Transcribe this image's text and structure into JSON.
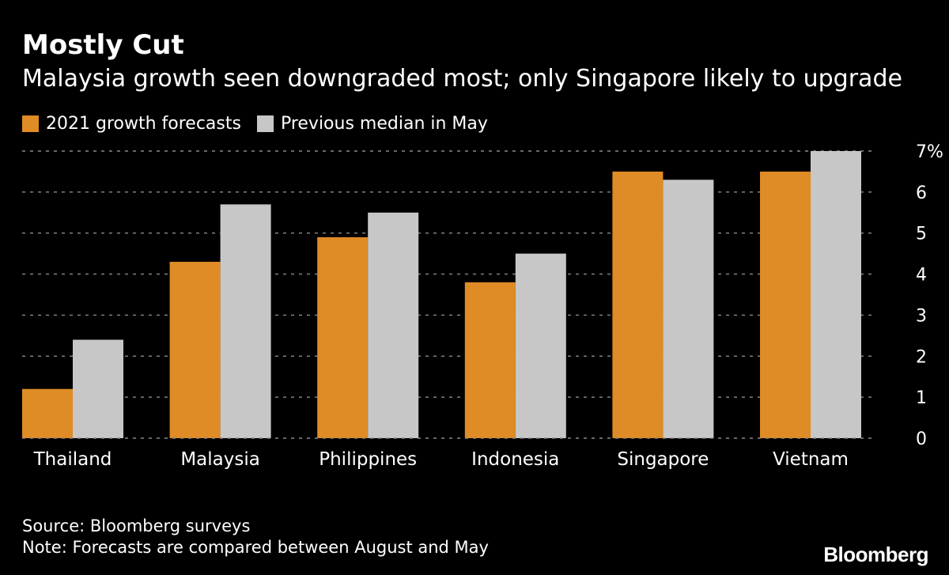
{
  "header": {
    "title": "Mostly Cut",
    "subtitle": "Malaysia growth seen downgraded most; only Singapore likely to upgrade"
  },
  "footer": {
    "source": "Source: Bloomberg surveys",
    "note": "Note: Forecasts are compared between August and May",
    "brand": "Bloomberg"
  },
  "colors": {
    "background": "#000000",
    "series_forecast": "#DF8B26",
    "series_previous": "#C7C7C7",
    "gridline": "#8A8A8A",
    "text": "#FFFFFF"
  },
  "chart_data": {
    "type": "bar",
    "title": "Mostly Cut",
    "subtitle": "Malaysia growth seen downgraded most; only Singapore likely to upgrade",
    "categories": [
      "Thailand",
      "Malaysia",
      "Philippines",
      "Indonesia",
      "Singapore",
      "Vietnam"
    ],
    "series": [
      {
        "name": "2021 growth forecasts",
        "values": [
          1.2,
          4.3,
          4.9,
          3.8,
          6.5,
          6.5
        ]
      },
      {
        "name": "Previous median in May",
        "values": [
          2.4,
          5.7,
          5.5,
          4.5,
          6.3,
          7.0
        ]
      }
    ],
    "xlabel": "",
    "ylabel": "",
    "ylim": [
      0,
      7
    ],
    "yticks": [
      0,
      1,
      2,
      3,
      4,
      5,
      6,
      7
    ],
    "ytick_labels": [
      "0",
      "1",
      "2",
      "3",
      "4",
      "5",
      "6",
      "7%"
    ],
    "grid": true,
    "y_axis_position": "right",
    "legend_position": "top-left"
  }
}
